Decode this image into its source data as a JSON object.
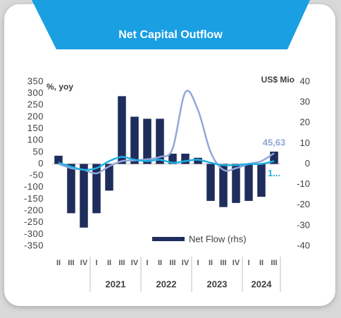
{
  "chart_data": {
    "type": "bar",
    "title": "Net Capital Outflow",
    "y_label": "%, yoy",
    "y2_label": "US$ Mio",
    "categories": [
      "II",
      "III",
      "IV",
      "I",
      "II",
      "III",
      "IV",
      "I",
      "II",
      "III",
      "IV",
      "I",
      "II",
      "III",
      "IV",
      "I",
      "II",
      "III"
    ],
    "groups": [
      "2021",
      "2022",
      "2023",
      "2024"
    ],
    "ylim": [
      -350,
      350
    ],
    "yticks": [
      -350,
      -300,
      -250,
      -200,
      -150,
      -100,
      -50,
      0,
      50,
      100,
      150,
      200,
      250,
      300,
      350
    ],
    "y2lim": [
      -40,
      40
    ],
    "y2ticks": [
      -40,
      -30,
      -20,
      -10,
      0,
      10,
      20,
      30,
      40
    ],
    "legend": "bottom",
    "series": [
      {
        "name": "Net Flow (rhs)",
        "type": "bar",
        "axis": "y2",
        "color": "#1f2d5c",
        "values": [
          4,
          -24,
          -31,
          -24,
          -13,
          33,
          23,
          22,
          22,
          5,
          5,
          3,
          -18,
          -21,
          -19,
          -18,
          -16,
          6
        ]
      },
      {
        "type": "line",
        "axis": "y",
        "color": "#93a6d8",
        "values": [
          0,
          -18,
          -25,
          -40,
          -10,
          12,
          15,
          20,
          30,
          65,
          305,
          230,
          50,
          -25,
          -18,
          0,
          12,
          45.63
        ],
        "value_labels": [
          null,
          null,
          null,
          null,
          null,
          null,
          null,
          null,
          null,
          null,
          null,
          null,
          null,
          null,
          null,
          null,
          null,
          "45,63"
        ]
      },
      {
        "type": "line",
        "axis": "y",
        "color": "#1eb0e3",
        "values": [
          5,
          -12,
          -25,
          -18,
          12,
          30,
          18,
          12,
          18,
          5,
          12,
          18,
          5,
          -5,
          -5,
          0,
          0,
          12
        ],
        "value_labels": [
          null,
          null,
          null,
          null,
          null,
          null,
          null,
          null,
          null,
          null,
          null,
          null,
          null,
          null,
          null,
          null,
          null,
          "1..."
        ]
      }
    ]
  }
}
